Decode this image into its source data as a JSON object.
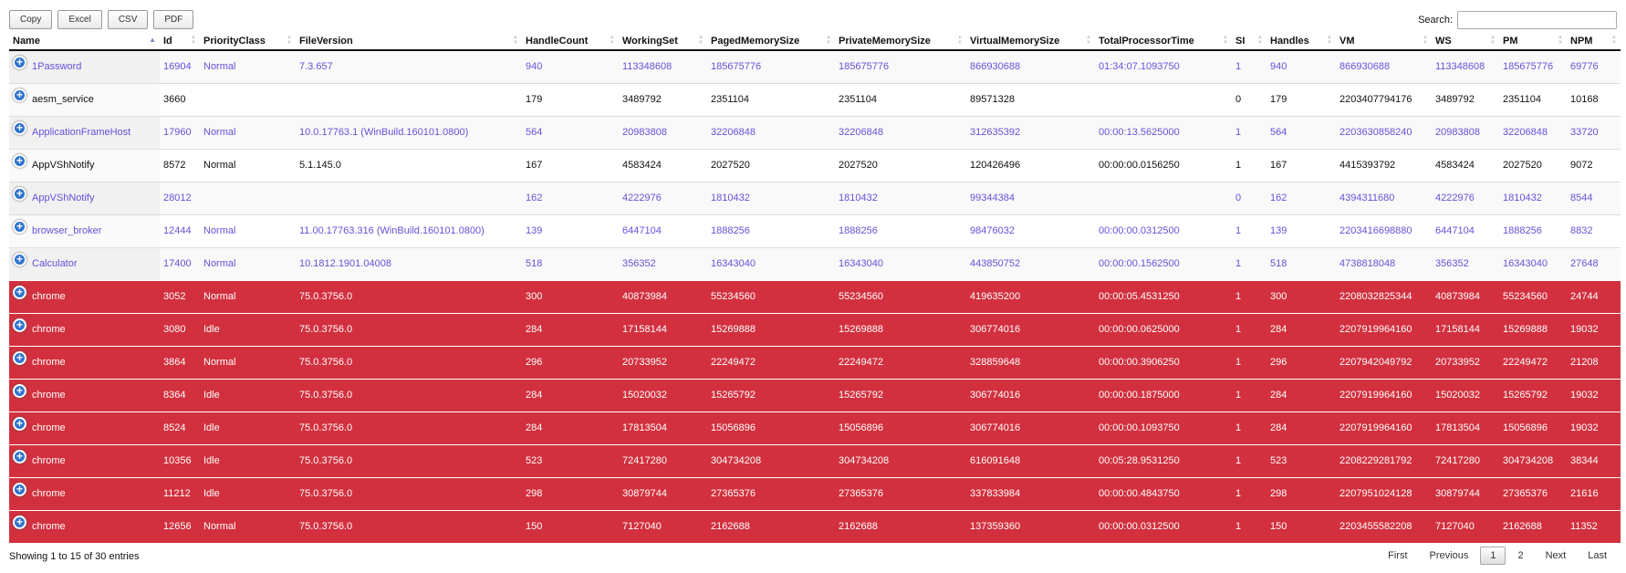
{
  "buttons": [
    "Copy",
    "Excel",
    "CSV",
    "PDF"
  ],
  "search_label": "Search:",
  "table": {
    "columns": [
      "Name",
      "Id",
      "PriorityClass",
      "FileVersion",
      "HandleCount",
      "WorkingSet",
      "PagedMemorySize",
      "PrivateMemorySize",
      "VirtualMemorySize",
      "TotalProcessorTime",
      "SI",
      "Handles",
      "VM",
      "WS",
      "PM",
      "NPM"
    ],
    "rows": [
      [
        "1Password",
        "16904",
        "Normal",
        "7.3.657",
        "940",
        "113348608",
        "185675776",
        "185675776",
        "866930688",
        "01:34:07.1093750",
        "1",
        "940",
        "866930688",
        "113348608",
        "185675776",
        "69776"
      ],
      [
        "aesm_service",
        "3660",
        null,
        null,
        "179",
        "3489792",
        "2351104",
        "2351104",
        "89571328",
        null,
        "0",
        "179",
        "2203407794176",
        "3489792",
        "2351104",
        "10168"
      ],
      [
        "ApplicationFrameHost",
        "17960",
        "Normal",
        "10.0.17763.1 (WinBuild.160101.0800)",
        "564",
        "20983808",
        "32206848",
        "32206848",
        "312635392",
        "00:00:13.5625000",
        "1",
        "564",
        "2203630858240",
        "20983808",
        "32206848",
        "33720"
      ],
      [
        "AppVShNotify",
        "8572",
        "Normal",
        "5.1.145.0",
        "167",
        "4583424",
        "2027520",
        "2027520",
        "120426496",
        "00:00:00.0156250",
        "1",
        "167",
        "4415393792",
        "4583424",
        "2027520",
        "9072"
      ],
      [
        "AppVShNotify",
        "28012",
        null,
        null,
        "162",
        "4222976",
        "1810432",
        "1810432",
        "99344384",
        null,
        "0",
        "162",
        "4394311680",
        "4222976",
        "1810432",
        "8544"
      ],
      [
        "browser_broker",
        "12444",
        "Normal",
        "11.00.17763.316 (WinBuild.160101.0800)",
        "139",
        "6447104",
        "1888256",
        "1888256",
        "98476032",
        "00:00:00.0312500",
        "1",
        "139",
        "2203416698880",
        "6447104",
        "1888256",
        "8832"
      ],
      [
        "Calculator",
        "17400",
        "Normal",
        "10.1812.1901.04008",
        "518",
        "356352",
        "16343040",
        "16343040",
        "443850752",
        "00:00:00.1562500",
        "1",
        "518",
        "4738818048",
        "356352",
        "16343040",
        "27648"
      ],
      [
        "chrome",
        "3052",
        "Normal",
        "75.0.3756.0",
        "300",
        "40873984",
        "55234560",
        "55234560",
        "419635200",
        "00:00:05.4531250",
        "1",
        "300",
        "2208032825344",
        "40873984",
        "55234560",
        "24744"
      ],
      [
        "chrome",
        "3080",
        "Idle",
        "75.0.3756.0",
        "284",
        "17158144",
        "15269888",
        "15269888",
        "306774016",
        "00:00:00.0625000",
        "1",
        "284",
        "2207919964160",
        "17158144",
        "15269888",
        "19032"
      ],
      [
        "chrome",
        "3864",
        "Normal",
        "75.0.3756.0",
        "296",
        "20733952",
        "22249472",
        "22249472",
        "328859648",
        "00:00:00.3906250",
        "1",
        "296",
        "2207942049792",
        "20733952",
        "22249472",
        "21208"
      ],
      [
        "chrome",
        "8364",
        "Idle",
        "75.0.3756.0",
        "284",
        "15020032",
        "15265792",
        "15265792",
        "306774016",
        "00:00:00.1875000",
        "1",
        "284",
        "2207919964160",
        "15020032",
        "15265792",
        "19032"
      ],
      [
        "chrome",
        "8524",
        "Idle",
        "75.0.3756.0",
        "284",
        "17813504",
        "15056896",
        "15056896",
        "306774016",
        "00:00:00.1093750",
        "1",
        "284",
        "2207919964160",
        "17813504",
        "15056896",
        "19032"
      ],
      [
        "chrome",
        "10356",
        "Idle",
        "75.0.3756.0",
        "523",
        "72417280",
        "304734208",
        "304734208",
        "616091648",
        "00:05:28.9531250",
        "1",
        "523",
        "2208229281792",
        "72417280",
        "304734208",
        "38344"
      ],
      [
        "chrome",
        "11212",
        "Idle",
        "75.0.3756.0",
        "298",
        "30879744",
        "27365376",
        "27365376",
        "337833984",
        "00:00:00.4843750",
        "1",
        "298",
        "2207951024128",
        "30879744",
        "27365376",
        "21616"
      ],
      [
        "chrome",
        "12656",
        "Normal",
        "75.0.3756.0",
        "150",
        "7127040",
        "2162688",
        "2162688",
        "137359360",
        "00:00:00.0312500",
        "1",
        "150",
        "2203455582208",
        "7127040",
        "2162688",
        "11352"
      ]
    ]
  },
  "footer": {
    "info": "Showing 1 to 15 of 30 entries",
    "pagination": [
      "First",
      "Previous",
      "1",
      "2",
      "Next",
      "Last"
    ]
  }
}
